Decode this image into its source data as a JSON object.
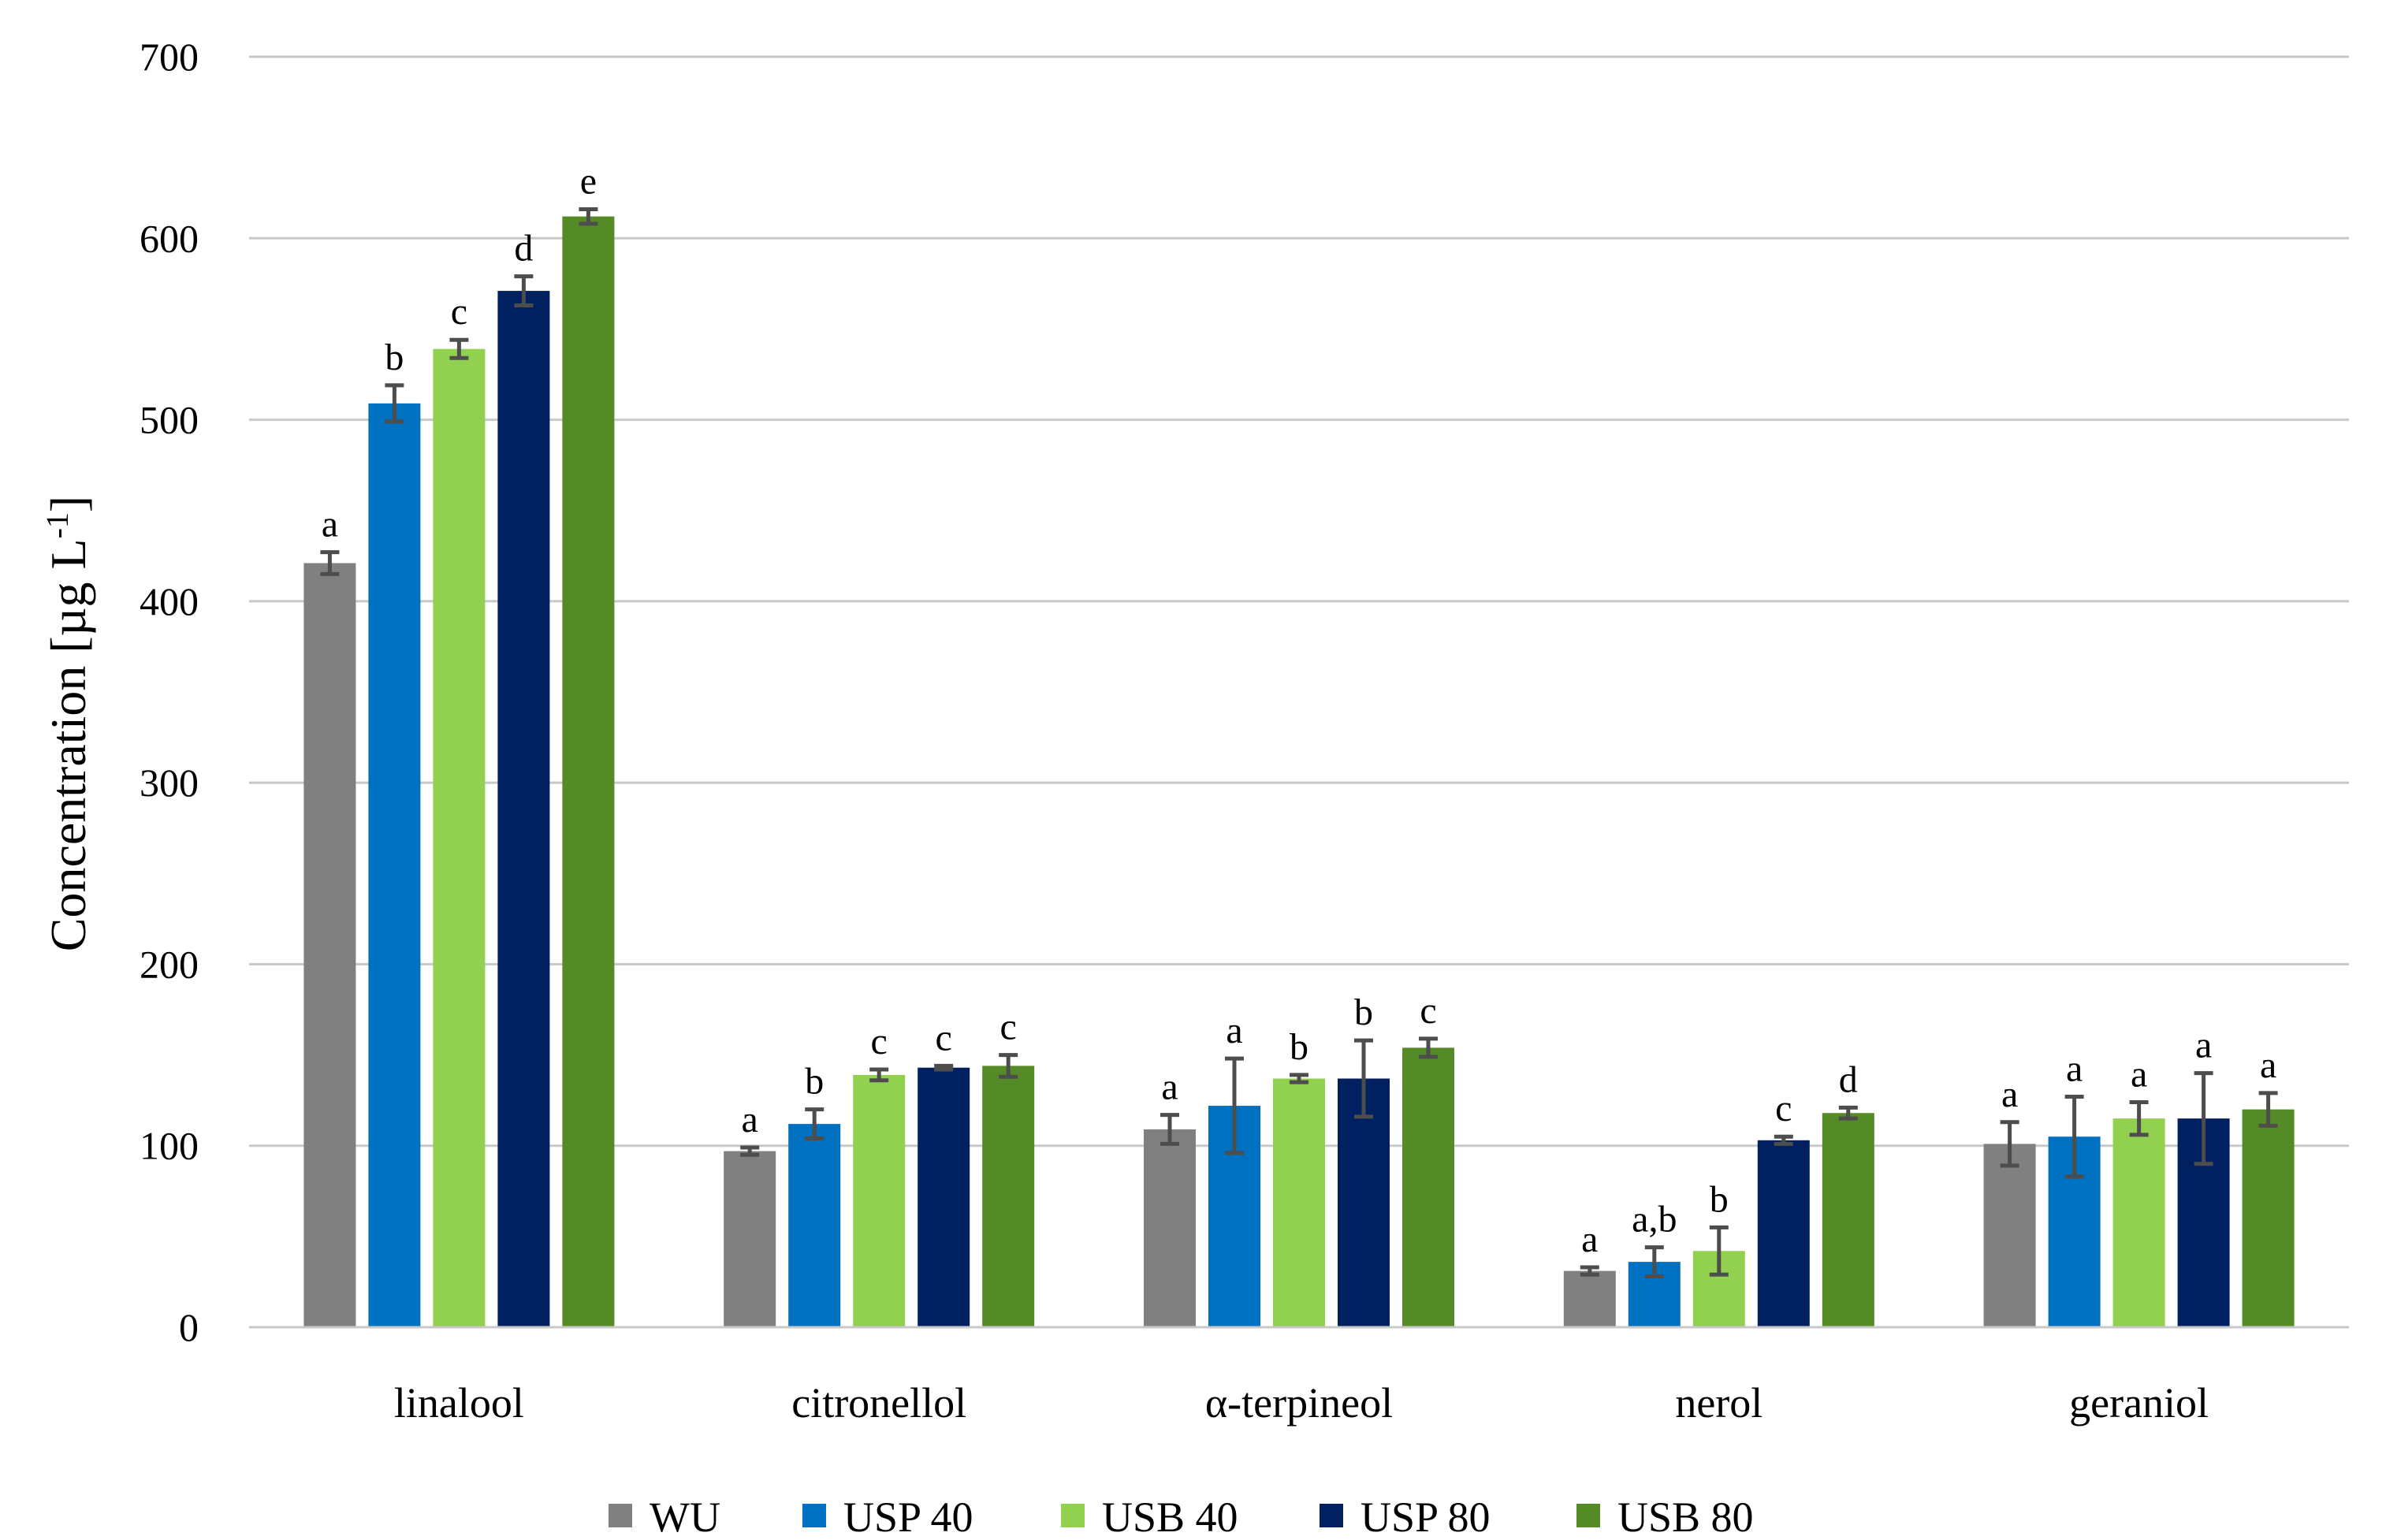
{
  "chart_data": {
    "type": "bar",
    "title": "",
    "xlabel": "",
    "ylabel": "Concentration [µg L",
    "ylabel_superscript": "-1",
    "ylabel_close": "]",
    "ylim": [
      0,
      700
    ],
    "yticks": [
      0,
      100,
      200,
      300,
      400,
      500,
      600,
      700
    ],
    "ytick_labels": [
      "0",
      "100",
      "200",
      "300",
      "400",
      "500",
      "600",
      "700"
    ],
    "grid": true,
    "legend_position": "bottom",
    "categories": [
      "linalool",
      "citronellol",
      "α-terpineol",
      "nerol",
      "geraniol"
    ],
    "series": [
      {
        "name": "WU",
        "color": "#808080",
        "values": [
          421,
          97,
          109,
          31,
          101
        ],
        "errors": [
          6,
          2,
          8,
          2,
          12
        ],
        "labels": [
          "a",
          "a",
          "a",
          "a",
          "a"
        ]
      },
      {
        "name": "USP 40",
        "color": "#0070c0",
        "values": [
          509,
          112,
          122,
          36,
          105
        ],
        "errors": [
          10,
          8,
          26,
          8,
          22
        ],
        "labels": [
          "b",
          "b",
          "a",
          "a,b",
          "a"
        ]
      },
      {
        "name": "USB 40",
        "color": "#92d050",
        "values": [
          539,
          139,
          137,
          42,
          115
        ],
        "errors": [
          5,
          3,
          2,
          13,
          9
        ],
        "labels": [
          "c",
          "c",
          "b",
          "b",
          "a"
        ]
      },
      {
        "name": "USP 80",
        "color": "#002060",
        "values": [
          571,
          143,
          137,
          103,
          115
        ],
        "errors": [
          8,
          1,
          21,
          2,
          25
        ],
        "labels": [
          "d",
          "c",
          "b",
          "c",
          "a"
        ]
      },
      {
        "name": "USB 80",
        "color": "#548b26",
        "values": [
          612,
          144,
          154,
          118,
          120
        ],
        "errors": [
          4,
          6,
          5,
          3,
          9
        ],
        "labels": [
          "e",
          "c",
          "c",
          "d",
          "a"
        ]
      }
    ]
  }
}
